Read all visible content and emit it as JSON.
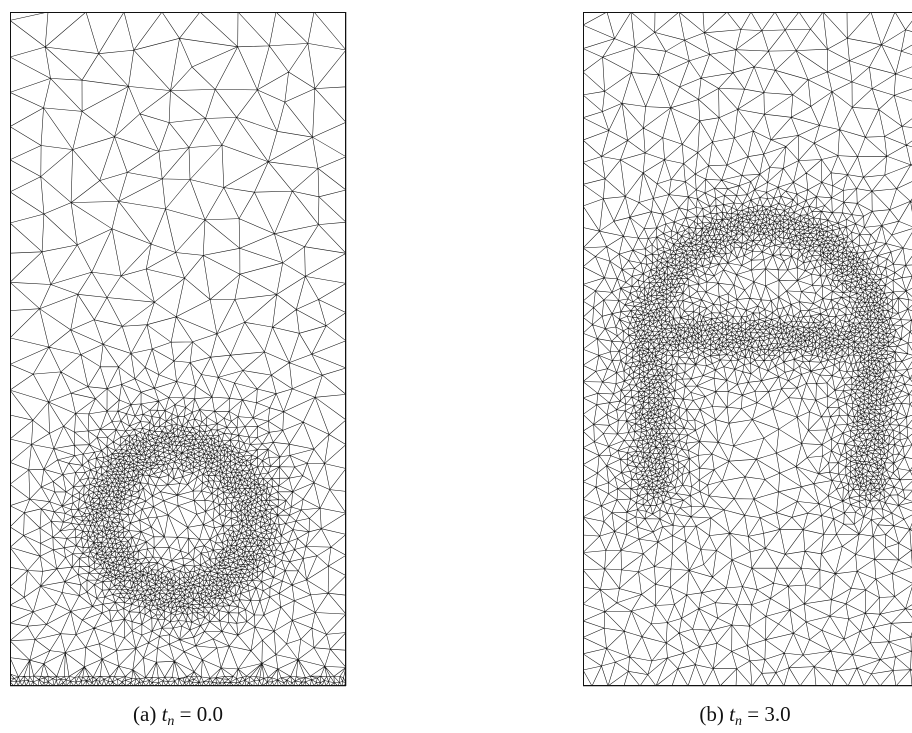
{
  "figure": {
    "panels": [
      {
        "caption": {
          "label": "(a)",
          "variable": "t",
          "subscript": "n",
          "relation": "=",
          "value": "0.0"
        }
      },
      {
        "caption": {
          "label": "(b)",
          "variable": "t",
          "subscript": "n",
          "relation": "=",
          "value": "3.0"
        }
      }
    ]
  }
}
